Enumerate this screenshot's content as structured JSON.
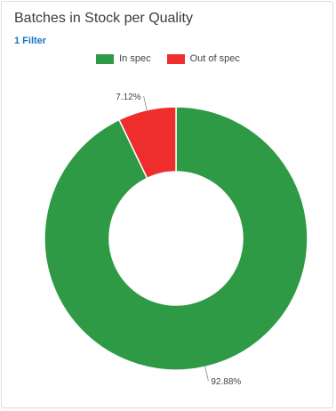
{
  "card": {
    "title": "Batches in Stock per Quality",
    "filter_label": "1 Filter"
  },
  "chart_data": {
    "type": "pie",
    "donut": true,
    "categories": [
      "In spec",
      "Out of spec"
    ],
    "values": [
      92.88,
      7.12
    ],
    "labels": [
      "92.88%",
      "7.12%"
    ],
    "colors": [
      "#2e9a45",
      "#ee2d2d"
    ],
    "legend_position": "top-center"
  }
}
